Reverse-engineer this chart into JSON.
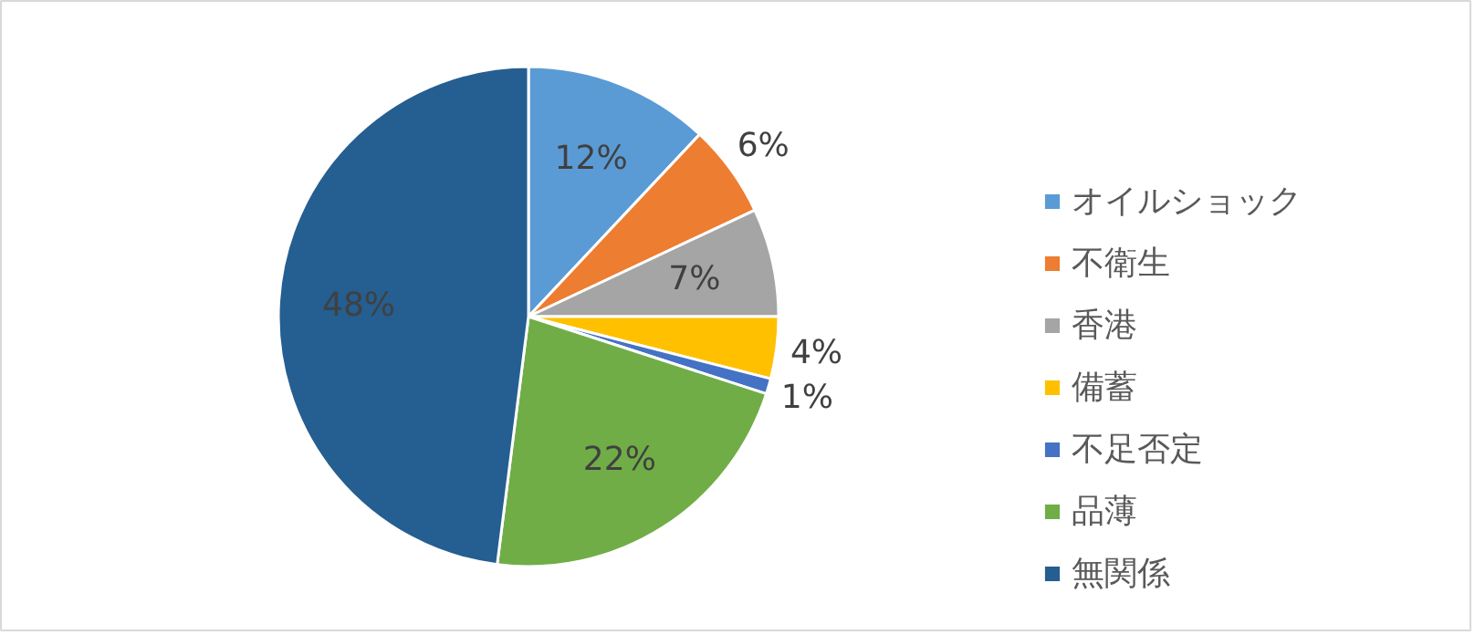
{
  "chart_data": {
    "type": "pie",
    "categories": [
      "オイルショック",
      "不衛生",
      "香港",
      "備蓄",
      "不足否定",
      "品薄",
      "無関係"
    ],
    "values": [
      12,
      6,
      7,
      4,
      1,
      22,
      48
    ],
    "colors": [
      "#5b9bd5",
      "#ed7d31",
      "#a5a5a5",
      "#ffc000",
      "#4472c4",
      "#70ad47",
      "#255e91"
    ],
    "value_labels": [
      "12%",
      "6%",
      "7%",
      "4%",
      "1%",
      "22%",
      "48%"
    ],
    "legend": "right"
  }
}
